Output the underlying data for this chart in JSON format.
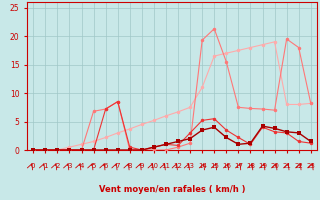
{
  "title": "",
  "xlabel": "Vent moyen/en rafales ( km/h )",
  "ylabel": "",
  "xlim": [
    -0.5,
    23.5
  ],
  "ylim": [
    0,
    26
  ],
  "yticks": [
    0,
    5,
    10,
    15,
    20,
    25
  ],
  "xticks": [
    0,
    1,
    2,
    3,
    4,
    5,
    6,
    7,
    8,
    9,
    10,
    11,
    12,
    13,
    14,
    15,
    16,
    17,
    18,
    19,
    20,
    21,
    22,
    23
  ],
  "bg_color": "#c8e8e8",
  "grid_color": "#a0c8c8",
  "line1_color": "#ffaaaa",
  "line2_color": "#ff7777",
  "line3_color": "#ee3333",
  "line4_color": "#aa0000",
  "line1_y": [
    0,
    0,
    0,
    0.5,
    1.0,
    1.5,
    2.2,
    3.0,
    3.7,
    4.5,
    5.2,
    6.0,
    6.7,
    7.5,
    11.0,
    16.5,
    17.0,
    17.5,
    18.0,
    18.5,
    19.0,
    8.0,
    8.0,
    8.2
  ],
  "line2_y": [
    0,
    0,
    0,
    0,
    0,
    6.8,
    7.2,
    8.5,
    0,
    0,
    0,
    0,
    0.5,
    1.2,
    19.3,
    21.3,
    15.5,
    7.5,
    7.3,
    7.2,
    7.0,
    19.5,
    18.0,
    8.2
  ],
  "line3_y": [
    0,
    0,
    0,
    0,
    0,
    0,
    7.2,
    8.5,
    0.5,
    0,
    0.5,
    1.0,
    0.8,
    3.0,
    5.2,
    5.5,
    3.5,
    2.2,
    1.0,
    4.0,
    3.2,
    3.0,
    1.5,
    1.2
  ],
  "line4_y": [
    0,
    0,
    0,
    0,
    0,
    0,
    0,
    0,
    0,
    0,
    0.5,
    1.0,
    1.5,
    2.0,
    3.5,
    4.0,
    2.2,
    1.0,
    1.2,
    4.2,
    3.8,
    3.2,
    3.0,
    1.5
  ],
  "arrow_up_x": [
    0,
    1,
    2,
    3,
    4,
    5,
    6,
    7,
    8,
    9,
    10,
    11,
    12,
    13
  ],
  "arrow_dn_x": [
    14,
    15,
    16,
    17,
    18,
    19,
    20,
    21,
    22,
    23
  ]
}
